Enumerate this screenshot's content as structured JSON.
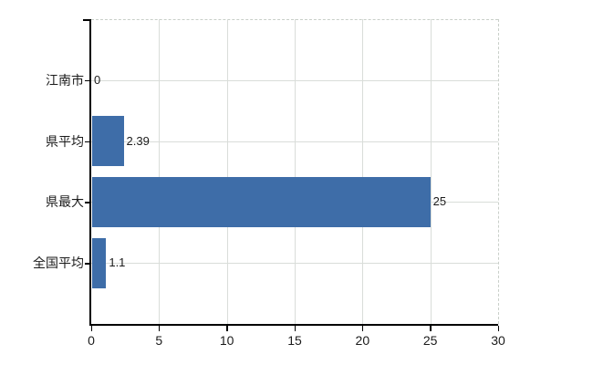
{
  "chart_data": {
    "type": "bar",
    "orientation": "horizontal",
    "title": "",
    "categories": [
      "江南市",
      "県平均",
      "県最大",
      "全国平均"
    ],
    "values": [
      0,
      2.39,
      25,
      1.1
    ],
    "value_labels": [
      "0",
      "2.39",
      "25",
      "1.1"
    ],
    "xlim": [
      0,
      30
    ],
    "x_ticks": [
      "0",
      "5",
      "10",
      "15",
      "20",
      "25",
      "30"
    ],
    "x_tick_values": [
      0,
      5,
      10,
      15,
      20,
      25,
      30
    ],
    "grid": "on",
    "legend": "none",
    "colors": {
      "bar": "#3e6da8",
      "grid": "#d9ddd9",
      "grid_boundary_dashed": "#c9cfc9",
      "axis": "#000000",
      "text": "#1b1b1b",
      "background": "#ffffff"
    }
  }
}
